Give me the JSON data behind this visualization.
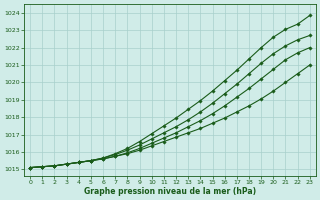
{
  "title": "Graphe pression niveau de la mer (hPa)",
  "bg_color": "#d0ece8",
  "grid_color": "#a8d0cc",
  "line_color": "#1a5c1a",
  "xlim": [
    -0.5,
    23.5
  ],
  "ylim": [
    1014.6,
    1024.5
  ],
  "yticks": [
    1015,
    1016,
    1017,
    1018,
    1019,
    1020,
    1021,
    1022,
    1023,
    1024
  ],
  "xticks": [
    0,
    1,
    2,
    3,
    4,
    5,
    6,
    7,
    8,
    9,
    10,
    11,
    12,
    13,
    14,
    15,
    16,
    17,
    18,
    19,
    20,
    21,
    22,
    23
  ],
  "series": [
    [
      1015.1,
      1015.15,
      1015.2,
      1015.3,
      1015.4,
      1015.5,
      1015.6,
      1015.75,
      1015.9,
      1016.1,
      1016.35,
      1016.6,
      1016.85,
      1017.1,
      1017.35,
      1017.65,
      1017.95,
      1018.3,
      1018.65,
      1019.05,
      1019.5,
      1020.0,
      1020.5,
      1021.0
    ],
    [
      1015.1,
      1015.15,
      1015.2,
      1015.3,
      1015.4,
      1015.5,
      1015.6,
      1015.75,
      1015.95,
      1016.2,
      1016.5,
      1016.8,
      1017.1,
      1017.45,
      1017.8,
      1018.2,
      1018.65,
      1019.15,
      1019.65,
      1020.2,
      1020.75,
      1021.3,
      1021.7,
      1022.0
    ],
    [
      1015.1,
      1015.15,
      1015.2,
      1015.3,
      1015.4,
      1015.5,
      1015.65,
      1015.85,
      1016.1,
      1016.4,
      1016.75,
      1017.1,
      1017.45,
      1017.85,
      1018.3,
      1018.8,
      1019.35,
      1019.9,
      1020.5,
      1021.1,
      1021.65,
      1022.1,
      1022.45,
      1022.7
    ],
    [
      1015.1,
      1015.15,
      1015.2,
      1015.3,
      1015.4,
      1015.5,
      1015.65,
      1015.9,
      1016.2,
      1016.6,
      1017.05,
      1017.5,
      1017.95,
      1018.45,
      1018.95,
      1019.5,
      1020.1,
      1020.7,
      1021.35,
      1022.0,
      1022.6,
      1023.05,
      1023.35,
      1023.85
    ]
  ]
}
